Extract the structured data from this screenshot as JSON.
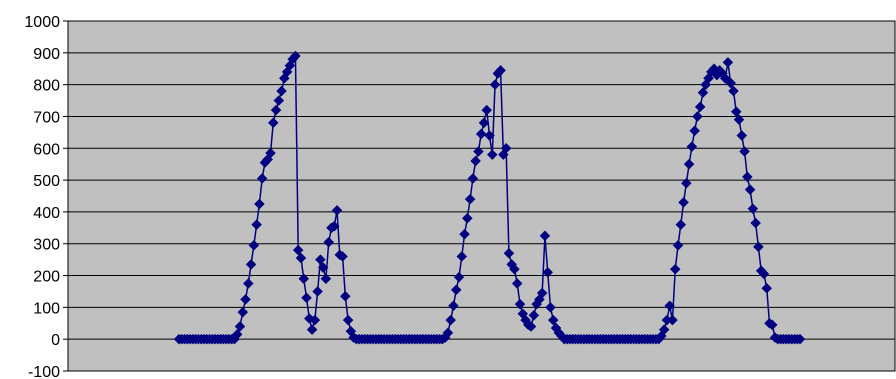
{
  "chart_data": {
    "type": "line",
    "title": "",
    "xlabel": "",
    "ylabel": "",
    "ylim": [
      -100,
      1000
    ],
    "yticks": [
      -100,
      0,
      100,
      200,
      300,
      400,
      500,
      600,
      700,
      800,
      900,
      1000
    ],
    "ytick_labels": [
      "-100",
      "0",
      "100",
      "200",
      "300",
      "400",
      "500",
      "600",
      "700",
      "800",
      "900",
      "1000"
    ],
    "grid": "horizontal",
    "legend": "none",
    "colors": {
      "plot_background": "#c0c0c0",
      "gridline": "#000000",
      "series_line": "#000080",
      "marker": "#000080"
    },
    "series": [
      {
        "marker": "diamond",
        "values": [
          0,
          0,
          0,
          0,
          0,
          0,
          0,
          0,
          0,
          0,
          0,
          0,
          0,
          0,
          0,
          0,
          0,
          0,
          0,
          0,
          0,
          15,
          40,
          85,
          125,
          175,
          235,
          295,
          360,
          425,
          505,
          555,
          565,
          585,
          680,
          720,
          750,
          780,
          820,
          840,
          860,
          880,
          890,
          280,
          255,
          190,
          130,
          65,
          30,
          60,
          150,
          250,
          225,
          190,
          305,
          350,
          355,
          405,
          265,
          260,
          135,
          60,
          25,
          5,
          0,
          0,
          0,
          0,
          0,
          0,
          0,
          0,
          0,
          0,
          0,
          0,
          0,
          0,
          0,
          0,
          0,
          0,
          0,
          0,
          0,
          0,
          0,
          0,
          0,
          0,
          0,
          0,
          0,
          0,
          0,
          0,
          5,
          20,
          60,
          105,
          155,
          195,
          260,
          330,
          380,
          440,
          505,
          560,
          590,
          645,
          680,
          720,
          640,
          580,
          800,
          835,
          845,
          580,
          600,
          270,
          235,
          220,
          175,
          110,
          80,
          60,
          45,
          40,
          75,
          110,
          125,
          145,
          325,
          210,
          100,
          60,
          35,
          20,
          10,
          0,
          0,
          0,
          0,
          0,
          0,
          0,
          0,
          0,
          0,
          0,
          0,
          0,
          0,
          0,
          0,
          0,
          0,
          0,
          0,
          0,
          0,
          0,
          0,
          0,
          0,
          0,
          0,
          0,
          0,
          0,
          0,
          0,
          0,
          0,
          10,
          30,
          60,
          105,
          60,
          220,
          295,
          360,
          430,
          490,
          550,
          605,
          655,
          700,
          730,
          775,
          800,
          820,
          840,
          850,
          830,
          845,
          835,
          820,
          870,
          805,
          780,
          715,
          690,
          640,
          590,
          510,
          470,
          410,
          365,
          290,
          215,
          205,
          160,
          50,
          45,
          5,
          0,
          0,
          0,
          0,
          0,
          0,
          0,
          0,
          0
        ]
      }
    ]
  }
}
